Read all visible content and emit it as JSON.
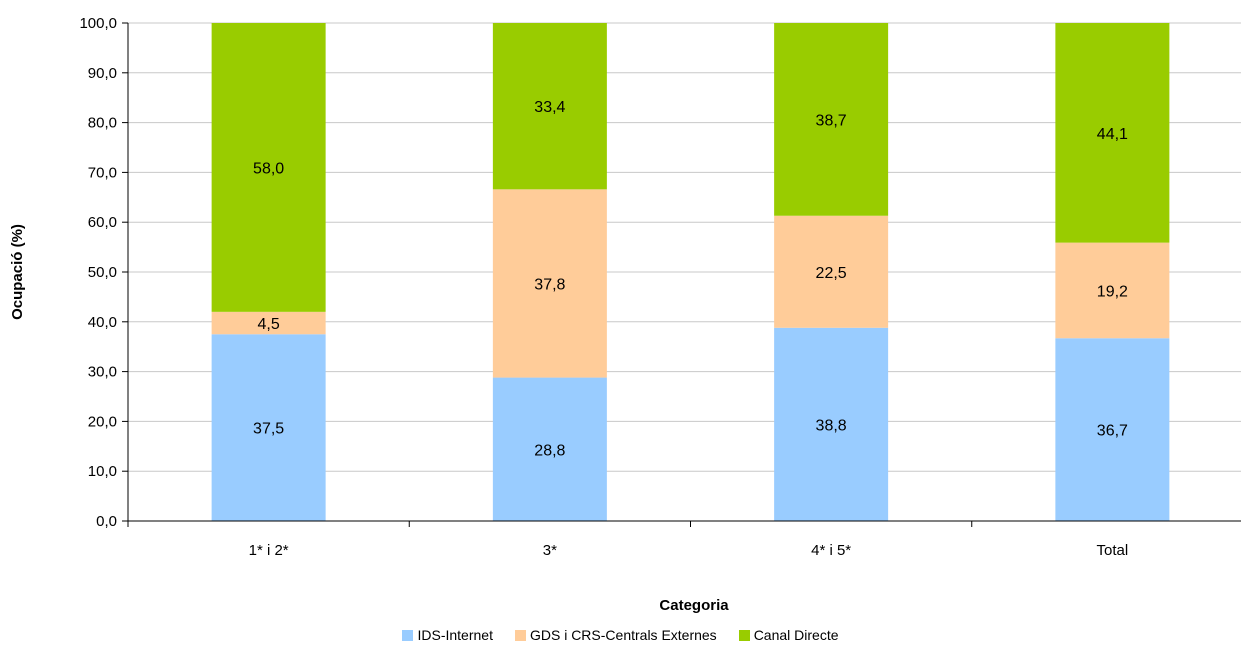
{
  "chart_data": {
    "type": "bar",
    "stacked": true,
    "categories": [
      "1* i 2*",
      "3*",
      "4* i 5*",
      "Total"
    ],
    "series": [
      {
        "name": "IDS-Internet",
        "values": [
          37.5,
          28.8,
          38.8,
          36.7
        ],
        "color": "#99ccff"
      },
      {
        "name": "GDS i CRS-Centrals Externes",
        "values": [
          4.5,
          37.8,
          22.5,
          19.2
        ],
        "color": "#ffcc99"
      },
      {
        "name": "Canal Directe",
        "values": [
          58.0,
          33.4,
          38.7,
          44.1
        ],
        "color": "#99cc00"
      }
    ],
    "value_labels": [
      [
        "37,5",
        "28,8",
        "38,8",
        "36,7"
      ],
      [
        "4,5",
        "37,8",
        "22,5",
        "19,2"
      ],
      [
        "58,0",
        "33,4",
        "38,7",
        "44,1"
      ]
    ],
    "yticks": [
      "0,0",
      "10,0",
      "20,0",
      "30,0",
      "40,0",
      "50,0",
      "60,0",
      "70,0",
      "80,0",
      "90,0",
      "100,0"
    ],
    "xlabel": "Categoria",
    "ylabel": "Ocupació (%)",
    "ylim": [
      0,
      100
    ],
    "grid": true,
    "legend_position": "bottom"
  }
}
